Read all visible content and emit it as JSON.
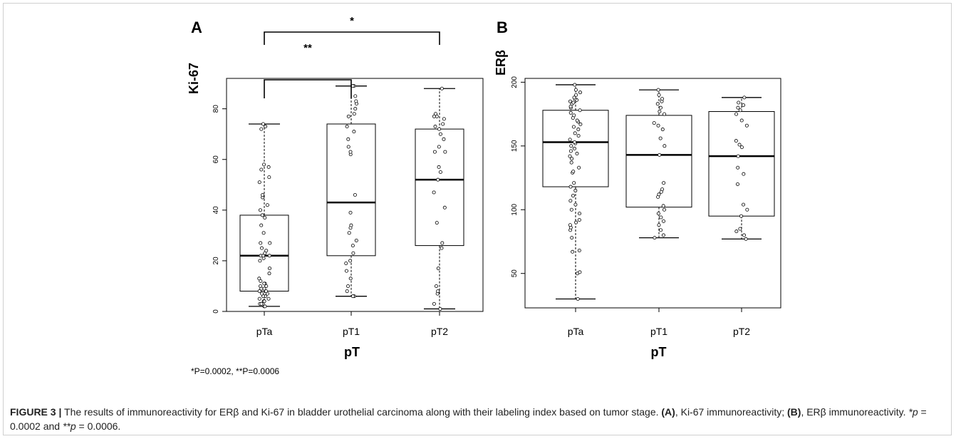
{
  "chart_data": [
    {
      "type": "box",
      "panel_label": "A",
      "ylabel": "Ki-67",
      "xlabel": "pT",
      "ylim": [
        0,
        92
      ],
      "yticks": [
        0,
        20,
        40,
        60,
        80
      ],
      "categories": [
        "pTa",
        "pT1",
        "pT2"
      ],
      "boxes": [
        {
          "category": "pTa",
          "min": 2,
          "q1": 8,
          "median": 22,
          "q3": 38,
          "max": 74
        },
        {
          "category": "pT1",
          "min": 6,
          "q1": 22,
          "median": 43,
          "q3": 74,
          "max": 89
        },
        {
          "category": "pT2",
          "min": 1,
          "q1": 26,
          "median": 52,
          "q3": 72,
          "max": 88
        }
      ],
      "points": {
        "pTa": [
          2,
          2,
          3,
          3,
          4,
          4,
          5,
          5,
          6,
          6,
          7,
          7,
          8,
          8,
          9,
          9,
          10,
          10,
          11,
          11,
          12,
          13,
          15,
          17,
          20,
          21,
          22,
          22,
          22,
          23,
          24,
          25,
          27,
          27,
          31,
          34,
          37,
          38,
          40,
          42,
          45,
          46,
          51,
          53,
          56,
          57,
          58,
          72,
          73,
          74
        ],
        "pT1": [
          6,
          6,
          8,
          10,
          13,
          16,
          19,
          20,
          23,
          26,
          28,
          31,
          33,
          34,
          39,
          46,
          62,
          63,
          65,
          68,
          71,
          73,
          77,
          78,
          80,
          82,
          83,
          85,
          89,
          89
        ],
        "pT2": [
          1,
          3,
          7,
          8,
          10,
          17,
          25,
          27,
          35,
          41,
          47,
          52,
          55,
          57,
          63,
          63,
          65,
          68,
          70,
          72,
          73,
          74,
          76,
          77,
          77,
          78,
          88
        ]
      },
      "significance": [
        {
          "from": "pTa",
          "to": "pT1",
          "label": "**"
        },
        {
          "from": "pTa",
          "to": "pT2",
          "label": "*"
        }
      ]
    },
    {
      "type": "box",
      "panel_label": "B",
      "ylabel": "ERβ",
      "xlabel": "pT",
      "ylim": [
        23,
        203
      ],
      "yticks": [
        50,
        100,
        150,
        200
      ],
      "categories": [
        "pTa",
        "pT1",
        "pT2"
      ],
      "boxes": [
        {
          "category": "pTa",
          "min": 30,
          "q1": 118,
          "median": 153,
          "q3": 178,
          "max": 198
        },
        {
          "category": "pT1",
          "min": 78,
          "q1": 102,
          "median": 143,
          "q3": 174,
          "max": 194
        },
        {
          "category": "pT2",
          "min": 77,
          "q1": 95,
          "median": 142,
          "q3": 177,
          "max": 188
        }
      ],
      "points": {
        "pTa": [
          30,
          50,
          51,
          67,
          68,
          78,
          84,
          86,
          88,
          90,
          92,
          97,
          100,
          104,
          107,
          111,
          115,
          118,
          121,
          129,
          130,
          133,
          137,
          140,
          142,
          144,
          146,
          148,
          150,
          152,
          153,
          155,
          158,
          160,
          163,
          165,
          167,
          169,
          170,
          172,
          174,
          176,
          178,
          180,
          181,
          183,
          184,
          185,
          186,
          187,
          188,
          190,
          192,
          194,
          198
        ],
        "pT1": [
          78,
          80,
          84,
          88,
          91,
          94,
          97,
          100,
          103,
          110,
          112,
          114,
          116,
          121,
          143,
          150,
          156,
          163,
          166,
          168,
          175,
          177,
          180,
          183,
          185,
          187,
          190,
          194
        ],
        "pT2": [
          77,
          80,
          83,
          85,
          95,
          100,
          104,
          120,
          128,
          133,
          142,
          149,
          151,
          154,
          166,
          170,
          175,
          178,
          180,
          182,
          184,
          188
        ]
      },
      "significance": []
    }
  ],
  "footnote": "*P=0.0002,  **P=0.0006",
  "caption": {
    "lead": "FIGURE 3 |",
    "t1": " The results of immunoreactivity for ERβ and Ki-67 in bladder urothelial carcinoma along with their labeling index based on tumor stage. ",
    "a": "(A)",
    "t2": ", Ki-67 immunoreactivity; ",
    "b": "(B)",
    "t3": ", ERβ immunoreactivity. ",
    "p1": "*p",
    "t4": " = 0.0002 and ",
    "p2": "**p",
    "t5": " = 0.0006."
  }
}
